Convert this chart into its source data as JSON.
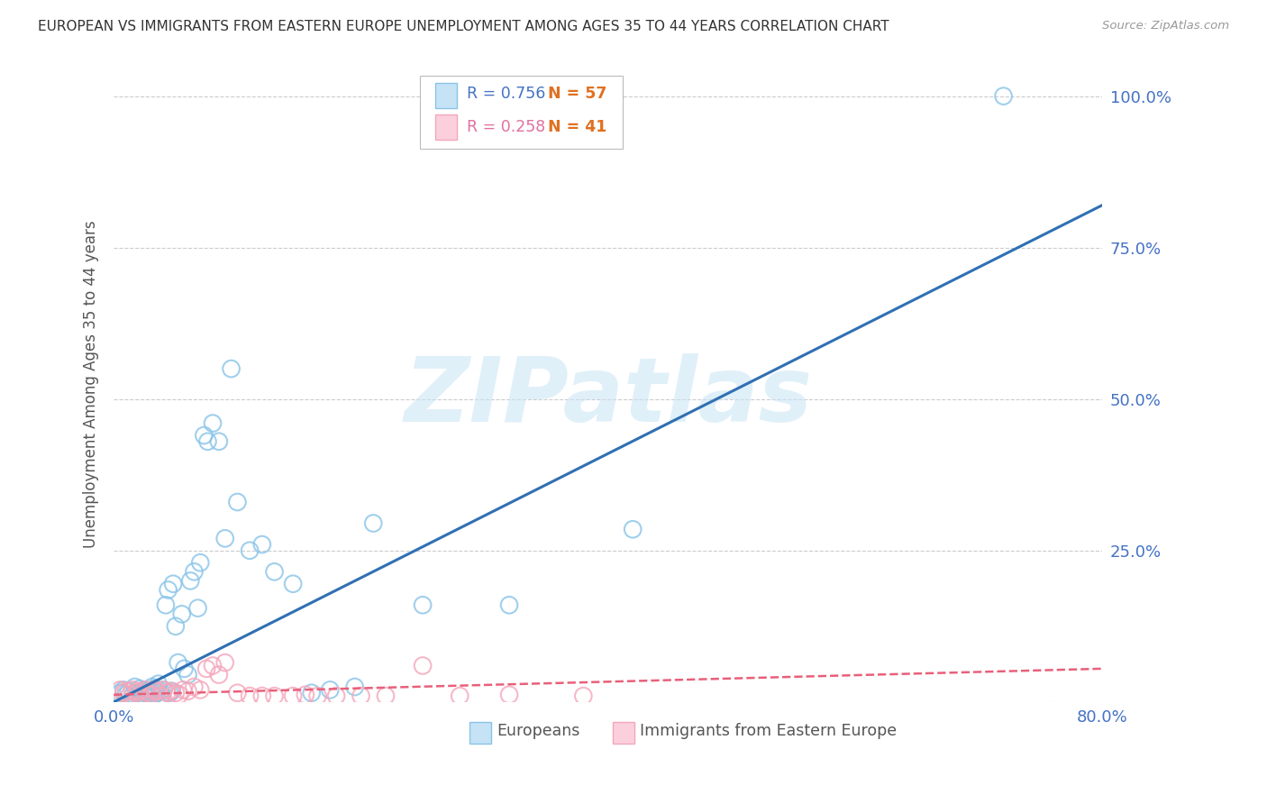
{
  "title": "EUROPEAN VS IMMIGRANTS FROM EASTERN EUROPE UNEMPLOYMENT AMONG AGES 35 TO 44 YEARS CORRELATION CHART",
  "source": "Source: ZipAtlas.com",
  "ylabel": "Unemployment Among Ages 35 to 44 years",
  "xlim": [
    0.0,
    0.8
  ],
  "ylim": [
    0.0,
    1.05
  ],
  "ytick_positions": [
    0.0,
    0.25,
    0.5,
    0.75,
    1.0
  ],
  "ytick_labels": [
    "",
    "25.0%",
    "50.0%",
    "75.0%",
    "100.0%"
  ],
  "grid_color": "#cccccc",
  "background_color": "#ffffff",
  "watermark": "ZIPatlas",
  "legend_R1": "R = 0.756",
  "legend_N1": "N = 57",
  "legend_R2": "R = 0.258",
  "legend_N2": "N = 41",
  "blue_scatter_color": "#89c4e8",
  "pink_scatter_color": "#f4a7bb",
  "blue_line_color": "#3070b3",
  "pink_line_color": "#e8607a",
  "tick_color": "#4472c4",
  "axis_label_color": "#555555",
  "title_color": "#333333",
  "europeans_scatter_x": [
    0.005,
    0.008,
    0.01,
    0.012,
    0.015,
    0.017,
    0.018,
    0.02,
    0.021,
    0.022,
    0.024,
    0.025,
    0.026,
    0.027,
    0.028,
    0.03,
    0.031,
    0.032,
    0.033,
    0.035,
    0.036,
    0.038,
    0.039,
    0.04,
    0.042,
    0.044,
    0.045,
    0.047,
    0.048,
    0.05,
    0.052,
    0.055,
    0.057,
    0.06,
    0.062,
    0.065,
    0.068,
    0.07,
    0.073,
    0.076,
    0.08,
    0.085,
    0.09,
    0.095,
    0.1,
    0.11,
    0.12,
    0.13,
    0.145,
    0.16,
    0.175,
    0.195,
    0.21,
    0.25,
    0.32,
    0.42,
    0.72
  ],
  "europeans_scatter_y": [
    0.015,
    0.02,
    0.012,
    0.018,
    0.01,
    0.025,
    0.008,
    0.015,
    0.022,
    0.012,
    0.018,
    0.01,
    0.02,
    0.015,
    0.012,
    0.018,
    0.025,
    0.01,
    0.022,
    0.015,
    0.03,
    0.018,
    0.012,
    0.02,
    0.16,
    0.185,
    0.015,
    0.018,
    0.195,
    0.125,
    0.065,
    0.145,
    0.055,
    0.045,
    0.2,
    0.215,
    0.155,
    0.23,
    0.44,
    0.43,
    0.46,
    0.43,
    0.27,
    0.55,
    0.33,
    0.25,
    0.26,
    0.215,
    0.195,
    0.015,
    0.02,
    0.025,
    0.295,
    0.16,
    0.16,
    0.285,
    1.0
  ],
  "immigrants_scatter_x": [
    0.005,
    0.008,
    0.01,
    0.013,
    0.015,
    0.018,
    0.02,
    0.022,
    0.025,
    0.027,
    0.03,
    0.032,
    0.035,
    0.038,
    0.04,
    0.043,
    0.046,
    0.05,
    0.053,
    0.056,
    0.06,
    0.065,
    0.07,
    0.075,
    0.08,
    0.085,
    0.09,
    0.1,
    0.11,
    0.12,
    0.13,
    0.145,
    0.155,
    0.165,
    0.18,
    0.2,
    0.22,
    0.25,
    0.28,
    0.32,
    0.38
  ],
  "immigrants_scatter_y": [
    0.02,
    0.015,
    0.018,
    0.012,
    0.02,
    0.015,
    0.018,
    0.01,
    0.02,
    0.015,
    0.012,
    0.02,
    0.018,
    0.01,
    0.02,
    0.015,
    0.018,
    0.015,
    0.012,
    0.02,
    0.018,
    0.025,
    0.02,
    0.055,
    0.06,
    0.045,
    0.065,
    0.015,
    0.01,
    0.01,
    0.01,
    0.01,
    0.012,
    0.01,
    0.01,
    0.01,
    0.01,
    0.06,
    0.01,
    0.012,
    0.01
  ],
  "blue_trend_x": [
    0.0,
    0.8
  ],
  "blue_trend_y": [
    0.0,
    0.82
  ],
  "pink_trend_x": [
    0.0,
    0.8
  ],
  "pink_trend_y": [
    0.012,
    0.055
  ]
}
